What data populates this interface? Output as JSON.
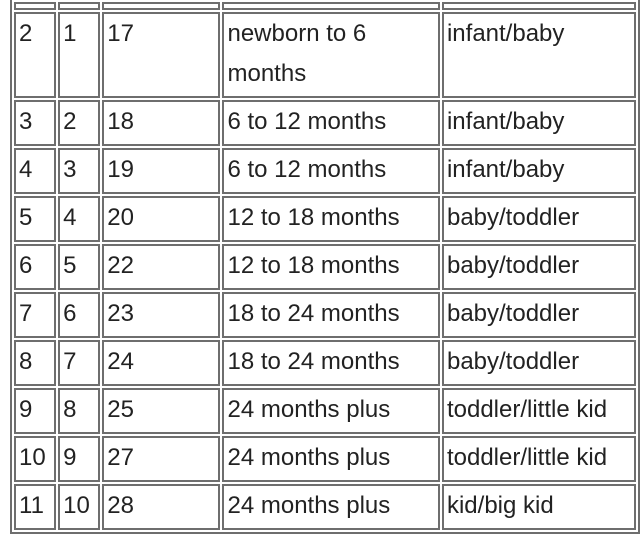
{
  "table": {
    "rows": [
      [
        "",
        "",
        "",
        "",
        ""
      ],
      [
        "2",
        "1",
        "17",
        "newborn to 6 months",
        "infant/baby"
      ],
      [
        "3",
        "2",
        "18",
        "6 to 12 months",
        "infant/baby"
      ],
      [
        "4",
        "3",
        "19",
        "6 to 12 months",
        "infant/baby"
      ],
      [
        "5",
        "4",
        "20",
        "12 to 18 months",
        "baby/toddler"
      ],
      [
        "6",
        "5",
        "22",
        "12 to 18 months",
        "baby/toddler"
      ],
      [
        "7",
        "6",
        "23",
        "18 to 24 months",
        "baby/toddler"
      ],
      [
        "8",
        "7",
        "24",
        "18 to 24 months",
        "baby/toddler"
      ],
      [
        "9",
        "8",
        "25",
        "24 months plus",
        "toddler/little kid"
      ],
      [
        "10",
        "9",
        "27",
        "24 months plus",
        "toddler/little kid"
      ],
      [
        "11",
        "10",
        "28",
        "24 months plus",
        "kid/big kid"
      ]
    ]
  }
}
